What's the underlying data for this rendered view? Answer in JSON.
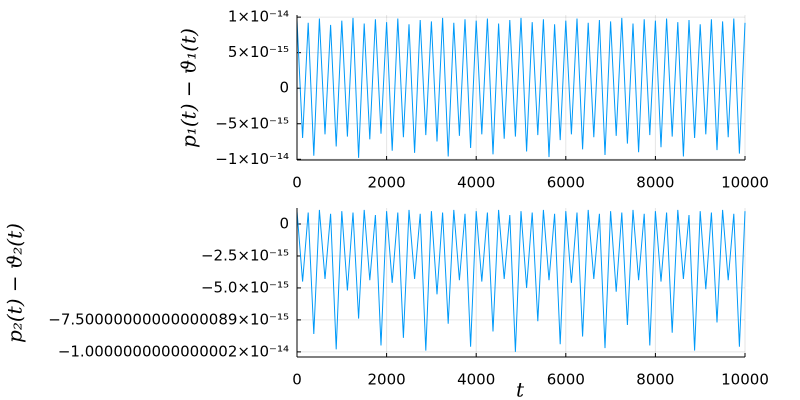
{
  "chart_data": [
    {
      "type": "line",
      "ylabel": "p₁(t) − ϑ₁(t)",
      "color": "#009af9",
      "grid": true,
      "xlim": [
        0,
        10000
      ],
      "xticks": [
        0,
        2000,
        4000,
        6000,
        8000,
        10000
      ],
      "ylim": [
        -1.01e-14,
        1.03e-14
      ],
      "yticks": [
        {
          "value": 1e-14,
          "label": "1×10⁻¹⁴"
        },
        {
          "value": 5e-15,
          "label": "5×10⁻¹⁵"
        },
        0,
        {
          "value": -5e-15,
          "label": "−5×10⁻¹⁵"
        },
        {
          "value": -1e-14,
          "label": "−1×10⁻¹⁴"
        }
      ],
      "x": [
        0,
        125,
        250,
        375,
        500,
        625,
        750,
        875,
        1000,
        1125,
        1250,
        1375,
        1500,
        1625,
        1750,
        1875,
        2000,
        2125,
        2250,
        2375,
        2500,
        2625,
        2750,
        2875,
        3000,
        3125,
        3250,
        3375,
        3500,
        3625,
        3750,
        3875,
        4000,
        4125,
        4250,
        4375,
        4500,
        4625,
        4750,
        4875,
        5000,
        5125,
        5250,
        5375,
        5500,
        5625,
        5750,
        5875,
        6000,
        6125,
        6250,
        6375,
        6500,
        6625,
        6750,
        6875,
        7000,
        7125,
        7250,
        7375,
        7500,
        7625,
        7750,
        7875,
        8000,
        8125,
        8250,
        8375,
        8500,
        8625,
        8750,
        8875,
        9000,
        9125,
        9250,
        9375,
        9500,
        9625,
        9750,
        9875,
        10000
      ],
      "values": [
        9.6e-15,
        -7e-15,
        9.2e-15,
        -9.5e-15,
        9.8e-15,
        -6.5e-15,
        8.9e-15,
        -8.2e-15,
        9.5e-15,
        -6.8e-15,
        9.9e-15,
        -9.8e-15,
        9.1e-15,
        -7.2e-15,
        9.7e-15,
        -6.4e-15,
        9.3e-15,
        -8.8e-15,
        9.8e-15,
        -6.9e-15,
        9e-15,
        -9.1e-15,
        9.6e-15,
        -6.6e-15,
        9.4e-15,
        -7.5e-15,
        9.9e-15,
        -9.6e-15,
        9.2e-15,
        -6.7e-15,
        9.7e-15,
        -8.4e-15,
        9.5e-15,
        -6.5e-15,
        9.8e-15,
        -9.3e-15,
        9.1e-15,
        -7.1e-15,
        9.6e-15,
        -6.8e-15,
        9.9e-15,
        -8.9e-15,
        9.3e-15,
        -6.6e-15,
        9.7e-15,
        -9.7e-15,
        9e-15,
        -7.3e-15,
        9.5e-15,
        -6.5e-15,
        9.8e-15,
        -8.6e-15,
        9.2e-15,
        -6.9e-15,
        9.6e-15,
        -9.4e-15,
        9.4e-15,
        -6.7e-15,
        9.9e-15,
        -7.8e-15,
        9.1e-15,
        -9e-15,
        9.7e-15,
        -6.6e-15,
        9.5e-15,
        -8.3e-15,
        9.8e-15,
        -6.8e-15,
        9.3e-15,
        -9.6e-15,
        9.6e-15,
        -7e-15,
        9e-15,
        -6.5e-15,
        9.7e-15,
        -8.7e-15,
        9.4e-15,
        -6.9e-15,
        9.8e-15,
        -9.2e-15,
        9.2e-15
      ]
    },
    {
      "type": "line",
      "ylabel": "p₂(t) − ϑ₂(t)",
      "xlabel": "t",
      "color": "#009af9",
      "grid": true,
      "xlim": [
        0,
        10000
      ],
      "xticks": [
        0,
        2000,
        4000,
        6000,
        8000,
        10000
      ],
      "ylim": [
        -1.04e-14,
        1.25e-15
      ],
      "yticks": [
        0,
        {
          "value": -2.5e-15,
          "label": "−2.5×10⁻¹⁵"
        },
        {
          "value": -5e-15,
          "label": "−5.0×10⁻¹⁵"
        },
        {
          "value": -7.5e-15,
          "label": "−7.50000000000000089×10⁻¹⁵"
        },
        {
          "value": -1e-14,
          "label": "−1.0000000000000002×10⁻¹⁴"
        }
      ],
      "x": [
        0,
        125,
        250,
        375,
        500,
        625,
        750,
        875,
        1000,
        1125,
        1250,
        1375,
        1500,
        1625,
        1750,
        1875,
        2000,
        2125,
        2250,
        2375,
        2500,
        2625,
        2750,
        2875,
        3000,
        3125,
        3250,
        3375,
        3500,
        3625,
        3750,
        3875,
        4000,
        4125,
        4250,
        4375,
        4500,
        4625,
        4750,
        4875,
        5000,
        5125,
        5250,
        5375,
        5500,
        5625,
        5750,
        5875,
        6000,
        6125,
        6250,
        6375,
        6500,
        6625,
        6750,
        6875,
        7000,
        7125,
        7250,
        7375,
        7500,
        7625,
        7750,
        7875,
        8000,
        8125,
        8250,
        8375,
        8500,
        8625,
        8750,
        8875,
        9000,
        9125,
        9250,
        9375,
        9500,
        9625,
        9750,
        9875,
        10000
      ],
      "values": [
        1e-15,
        -4.5e-15,
        9e-16,
        -8.6e-15,
        1.1e-15,
        -4.3e-15,
        8e-16,
        -9.8e-15,
        1e-15,
        -5.2e-15,
        9e-16,
        -7.4e-15,
        1.1e-15,
        -4.4e-15,
        7e-16,
        -9.5e-15,
        1e-15,
        -4.6e-15,
        9e-16,
        -8.9e-15,
        1.1e-15,
        -4.3e-15,
        8e-16,
        -9.9e-15,
        1e-15,
        -5.5e-15,
        9e-16,
        -7.8e-15,
        1.1e-15,
        -4.4e-15,
        8e-16,
        -9.6e-15,
        1e-15,
        -4.5e-15,
        9e-16,
        -8.4e-15,
        1.1e-15,
        -4.3e-15,
        7e-16,
        -1e-14,
        1e-15,
        -5e-15,
        9e-16,
        -7.6e-15,
        1.1e-15,
        -4.4e-15,
        8e-16,
        -9.4e-15,
        1e-15,
        -4.6e-15,
        9e-16,
        -8.8e-15,
        1.1e-15,
        -4.3e-15,
        8e-16,
        -9.7e-15,
        1e-15,
        -5.3e-15,
        9e-16,
        -7.9e-15,
        1.1e-15,
        -4.4e-15,
        8e-16,
        -9.5e-15,
        1e-15,
        -4.5e-15,
        9e-16,
        -8.5e-15,
        1.1e-15,
        -4.3e-15,
        7e-16,
        -9.9e-15,
        1e-15,
        -5.1e-15,
        9e-16,
        -7.7e-15,
        1.1e-15,
        -4.4e-15,
        8e-16,
        -9.6e-15,
        1e-15
      ]
    }
  ]
}
